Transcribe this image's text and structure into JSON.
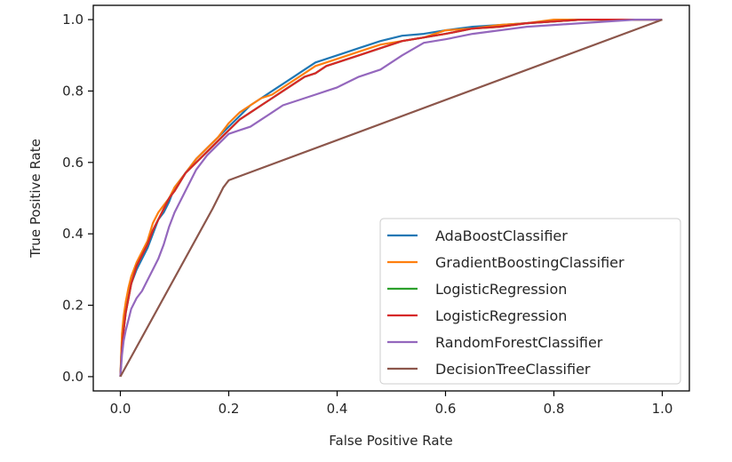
{
  "chart_data": {
    "type": "line",
    "title": "",
    "xlabel": "False Positive Rate",
    "ylabel": "True Positive Rate",
    "xlim": [
      -0.05,
      1.05
    ],
    "ylim": [
      -0.04,
      1.04
    ],
    "xticks": [
      "0.0",
      "0.2",
      "0.4",
      "0.6",
      "0.8",
      "1.0"
    ],
    "yticks": [
      "0.0",
      "0.2",
      "0.4",
      "0.6",
      "0.8",
      "1.0"
    ],
    "grid": false,
    "legend_position": "lower-right",
    "series": [
      {
        "name": "AdaBoostClassifier",
        "color": "#1f77b4",
        "x": [
          0,
          0.003,
          0.006,
          0.01,
          0.015,
          0.02,
          0.03,
          0.04,
          0.05,
          0.06,
          0.07,
          0.08,
          0.09,
          0.1,
          0.12,
          0.14,
          0.16,
          0.18,
          0.2,
          0.22,
          0.24,
          0.26,
          0.28,
          0.3,
          0.32,
          0.34,
          0.36,
          0.38,
          0.4,
          0.44,
          0.48,
          0.52,
          0.56,
          0.6,
          0.65,
          0.7,
          0.75,
          0.8,
          0.85,
          0.9,
          0.95,
          1.0
        ],
        "y": [
          0,
          0.1,
          0.15,
          0.19,
          0.23,
          0.26,
          0.3,
          0.33,
          0.36,
          0.4,
          0.44,
          0.46,
          0.49,
          0.53,
          0.57,
          0.61,
          0.64,
          0.67,
          0.7,
          0.73,
          0.76,
          0.78,
          0.8,
          0.82,
          0.84,
          0.86,
          0.88,
          0.89,
          0.9,
          0.92,
          0.94,
          0.955,
          0.96,
          0.97,
          0.98,
          0.985,
          0.99,
          0.995,
          1.0,
          1.0,
          1.0,
          1.0
        ]
      },
      {
        "name": "GradientBoostingClassifier",
        "color": "#ff7f0e",
        "x": [
          0,
          0.003,
          0.006,
          0.01,
          0.015,
          0.02,
          0.03,
          0.04,
          0.05,
          0.06,
          0.07,
          0.08,
          0.09,
          0.1,
          0.12,
          0.14,
          0.16,
          0.18,
          0.2,
          0.22,
          0.24,
          0.26,
          0.28,
          0.3,
          0.32,
          0.34,
          0.36,
          0.38,
          0.4,
          0.44,
          0.48,
          0.52,
          0.56,
          0.6,
          0.65,
          0.7,
          0.75,
          0.8,
          0.85,
          0.9,
          0.95,
          1.0
        ],
        "y": [
          0,
          0.12,
          0.17,
          0.21,
          0.25,
          0.28,
          0.32,
          0.35,
          0.38,
          0.43,
          0.46,
          0.48,
          0.5,
          0.53,
          0.57,
          0.61,
          0.64,
          0.67,
          0.71,
          0.74,
          0.76,
          0.78,
          0.79,
          0.81,
          0.83,
          0.85,
          0.87,
          0.88,
          0.89,
          0.91,
          0.93,
          0.94,
          0.95,
          0.97,
          0.975,
          0.985,
          0.99,
          1.0,
          1.0,
          1.0,
          1.0,
          1.0
        ]
      },
      {
        "name": "LogisticRegression",
        "color": "#2ca02c",
        "x": [
          0,
          0.003,
          0.006,
          0.01,
          0.015,
          0.02,
          0.03,
          0.04,
          0.05,
          0.06,
          0.07,
          0.08,
          0.09,
          0.1,
          0.12,
          0.14,
          0.16,
          0.18,
          0.2,
          0.22,
          0.24,
          0.26,
          0.28,
          0.3,
          0.32,
          0.34,
          0.36,
          0.38,
          0.4,
          0.44,
          0.48,
          0.52,
          0.56,
          0.6,
          0.65,
          0.7,
          0.75,
          0.8,
          0.85,
          0.9,
          0.95,
          1.0
        ],
        "y": [
          0,
          0.08,
          0.13,
          0.18,
          0.22,
          0.26,
          0.31,
          0.34,
          0.37,
          0.41,
          0.44,
          0.47,
          0.5,
          0.52,
          0.57,
          0.6,
          0.63,
          0.66,
          0.69,
          0.72,
          0.74,
          0.76,
          0.78,
          0.8,
          0.82,
          0.84,
          0.85,
          0.87,
          0.88,
          0.9,
          0.92,
          0.94,
          0.95,
          0.96,
          0.975,
          0.98,
          0.99,
          0.995,
          1.0,
          1.0,
          1.0,
          1.0
        ]
      },
      {
        "name": "LogisticRegression",
        "color": "#d62728",
        "x": [
          0,
          0.003,
          0.006,
          0.01,
          0.015,
          0.02,
          0.03,
          0.04,
          0.05,
          0.06,
          0.07,
          0.08,
          0.09,
          0.1,
          0.12,
          0.14,
          0.16,
          0.18,
          0.2,
          0.22,
          0.24,
          0.26,
          0.28,
          0.3,
          0.32,
          0.34,
          0.36,
          0.38,
          0.4,
          0.44,
          0.48,
          0.52,
          0.56,
          0.6,
          0.65,
          0.7,
          0.75,
          0.8,
          0.85,
          0.9,
          0.95,
          1.0
        ],
        "y": [
          0,
          0.08,
          0.13,
          0.18,
          0.22,
          0.26,
          0.31,
          0.34,
          0.37,
          0.41,
          0.44,
          0.47,
          0.5,
          0.52,
          0.57,
          0.6,
          0.63,
          0.66,
          0.69,
          0.72,
          0.74,
          0.76,
          0.78,
          0.8,
          0.82,
          0.84,
          0.85,
          0.87,
          0.88,
          0.9,
          0.92,
          0.94,
          0.95,
          0.96,
          0.975,
          0.98,
          0.99,
          0.995,
          1.0,
          1.0,
          1.0,
          1.0
        ]
      },
      {
        "name": "RandomForestClassifier",
        "color": "#9467bd",
        "x": [
          0,
          0.003,
          0.006,
          0.01,
          0.015,
          0.02,
          0.03,
          0.04,
          0.05,
          0.06,
          0.07,
          0.08,
          0.09,
          0.1,
          0.12,
          0.14,
          0.16,
          0.18,
          0.2,
          0.22,
          0.24,
          0.26,
          0.28,
          0.3,
          0.32,
          0.34,
          0.36,
          0.38,
          0.4,
          0.44,
          0.48,
          0.52,
          0.56,
          0.6,
          0.65,
          0.7,
          0.75,
          0.8,
          0.85,
          0.9,
          0.95,
          1.0
        ],
        "y": [
          0,
          0.06,
          0.1,
          0.13,
          0.16,
          0.19,
          0.22,
          0.24,
          0.27,
          0.3,
          0.33,
          0.37,
          0.42,
          0.46,
          0.52,
          0.58,
          0.62,
          0.65,
          0.68,
          0.69,
          0.7,
          0.72,
          0.74,
          0.76,
          0.77,
          0.78,
          0.79,
          0.8,
          0.81,
          0.84,
          0.86,
          0.9,
          0.935,
          0.945,
          0.96,
          0.97,
          0.98,
          0.985,
          0.99,
          0.995,
          1.0,
          1.0
        ]
      },
      {
        "name": "DecisionTreeClassifier",
        "color": "#8c564b",
        "x": [
          0,
          0.17,
          0.18,
          0.19,
          0.2,
          1.0
        ],
        "y": [
          0,
          0.47,
          0.5,
          0.53,
          0.55,
          1.0
        ]
      }
    ]
  }
}
